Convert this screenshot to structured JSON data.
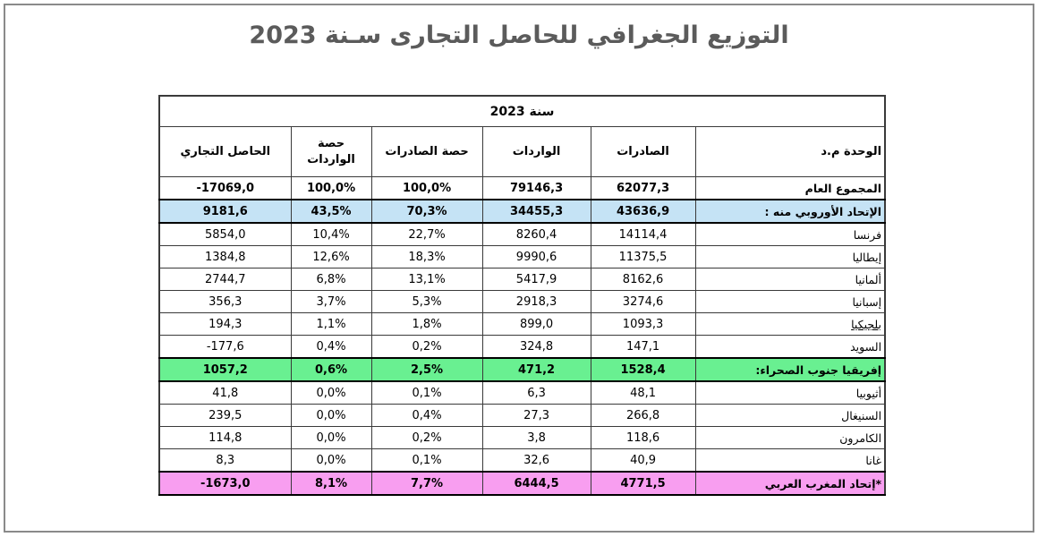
{
  "page": {
    "title": "التوزيع الجغرافي للحاصل التجارى سـنة 2023"
  },
  "colors": {
    "eu_row_bg": "#C5E3F5",
    "africa_row_bg": "#69F091",
    "maghreb_row_bg": "#F89EF0",
    "page_border": "#8a8a8a",
    "title_color": "#5b5b5b"
  },
  "table": {
    "year_header": "سنة 2023",
    "columns": [
      "الوحدة م.د",
      "الصادرات",
      "الواردات",
      "حصة الصادرات",
      "حصة الواردات",
      "الحاصل التجاري"
    ],
    "rows": [
      {
        "label": "المجموع العام",
        "exports": "62077,3",
        "imports": "79146,3",
        "share_exports": "100,0%",
        "share_imports": "100,0%",
        "balance": "-17069,0",
        "bg": "",
        "bold": true,
        "underline": false,
        "total": true,
        "thick": false
      },
      {
        "label": "الإتحاد الأوروبي منه :",
        "exports": "43636,9",
        "imports": "34455,3",
        "share_exports": "70,3%",
        "share_imports": "43,5%",
        "balance": "9181,6",
        "bg": "#C5E3F5",
        "bold": true,
        "underline": false,
        "total": false,
        "thick": true
      },
      {
        "label": "فرنسا",
        "exports": "14114,4",
        "imports": "8260,4",
        "share_exports": "22,7%",
        "share_imports": "10,4%",
        "balance": "5854,0",
        "bg": "",
        "bold": false,
        "underline": false,
        "total": false,
        "thick": false
      },
      {
        "label": "إيطاليا",
        "exports": "11375,5",
        "imports": "9990,6",
        "share_exports": "18,3%",
        "share_imports": "12,6%",
        "balance": "1384,8",
        "bg": "",
        "bold": false,
        "underline": false,
        "total": false,
        "thick": false
      },
      {
        "label": "ألمانيا",
        "exports": "8162,6",
        "imports": "5417,9",
        "share_exports": "13,1%",
        "share_imports": "6,8%",
        "balance": "2744,7",
        "bg": "",
        "bold": false,
        "underline": false,
        "total": false,
        "thick": false
      },
      {
        "label": "إسبانيا",
        "exports": "3274,6",
        "imports": "2918,3",
        "share_exports": "5,3%",
        "share_imports": "3,7%",
        "balance": "356,3",
        "bg": "",
        "bold": false,
        "underline": false,
        "total": false,
        "thick": false
      },
      {
        "label": "بلجيكيا",
        "exports": "1093,3",
        "imports": "899,0",
        "share_exports": "1,8%",
        "share_imports": "1,1%",
        "balance": "194,3",
        "bg": "",
        "bold": false,
        "underline": true,
        "total": false,
        "thick": false
      },
      {
        "label": "السويد",
        "exports": "147,1",
        "imports": "324,8",
        "share_exports": "0,2%",
        "share_imports": "0,4%",
        "balance": "-177,6",
        "bg": "",
        "bold": false,
        "underline": false,
        "total": false,
        "thick": false
      },
      {
        "label": "إفريقيا جنوب الصحراء:",
        "exports": "1528,4",
        "imports": "471,2",
        "share_exports": "2,5%",
        "share_imports": "0,6%",
        "balance": "1057,2",
        "bg": "#69F091",
        "bold": true,
        "underline": false,
        "total": false,
        "thick": true
      },
      {
        "label": "أثيوبيا",
        "exports": "48,1",
        "imports": "6,3",
        "share_exports": "0,1%",
        "share_imports": "0,0%",
        "balance": "41,8",
        "bg": "",
        "bold": false,
        "underline": false,
        "total": false,
        "thick": false
      },
      {
        "label": "السنيغال",
        "exports": "266,8",
        "imports": "27,3",
        "share_exports": "0,4%",
        "share_imports": "0,0%",
        "balance": "239,5",
        "bg": "",
        "bold": false,
        "underline": false,
        "total": false,
        "thick": false
      },
      {
        "label": "الكامرون",
        "exports": "118,6",
        "imports": "3,8",
        "share_exports": "0,2%",
        "share_imports": "0,0%",
        "balance": "114,8",
        "bg": "",
        "bold": false,
        "underline": false,
        "total": false,
        "thick": false
      },
      {
        "label": "غانا",
        "exports": "40,9",
        "imports": "32,6",
        "share_exports": "0,1%",
        "share_imports": "0,0%",
        "balance": "8,3",
        "bg": "",
        "bold": false,
        "underline": false,
        "total": false,
        "thick": false
      },
      {
        "label": "*إتحاد المغرب العربي",
        "exports": "4771,5",
        "imports": "6444,5",
        "share_exports": "7,7%",
        "share_imports": "8,1%",
        "balance": "-1673,0",
        "bg": "#F89EF0",
        "bold": true,
        "underline": false,
        "total": false,
        "thick": true
      }
    ]
  }
}
